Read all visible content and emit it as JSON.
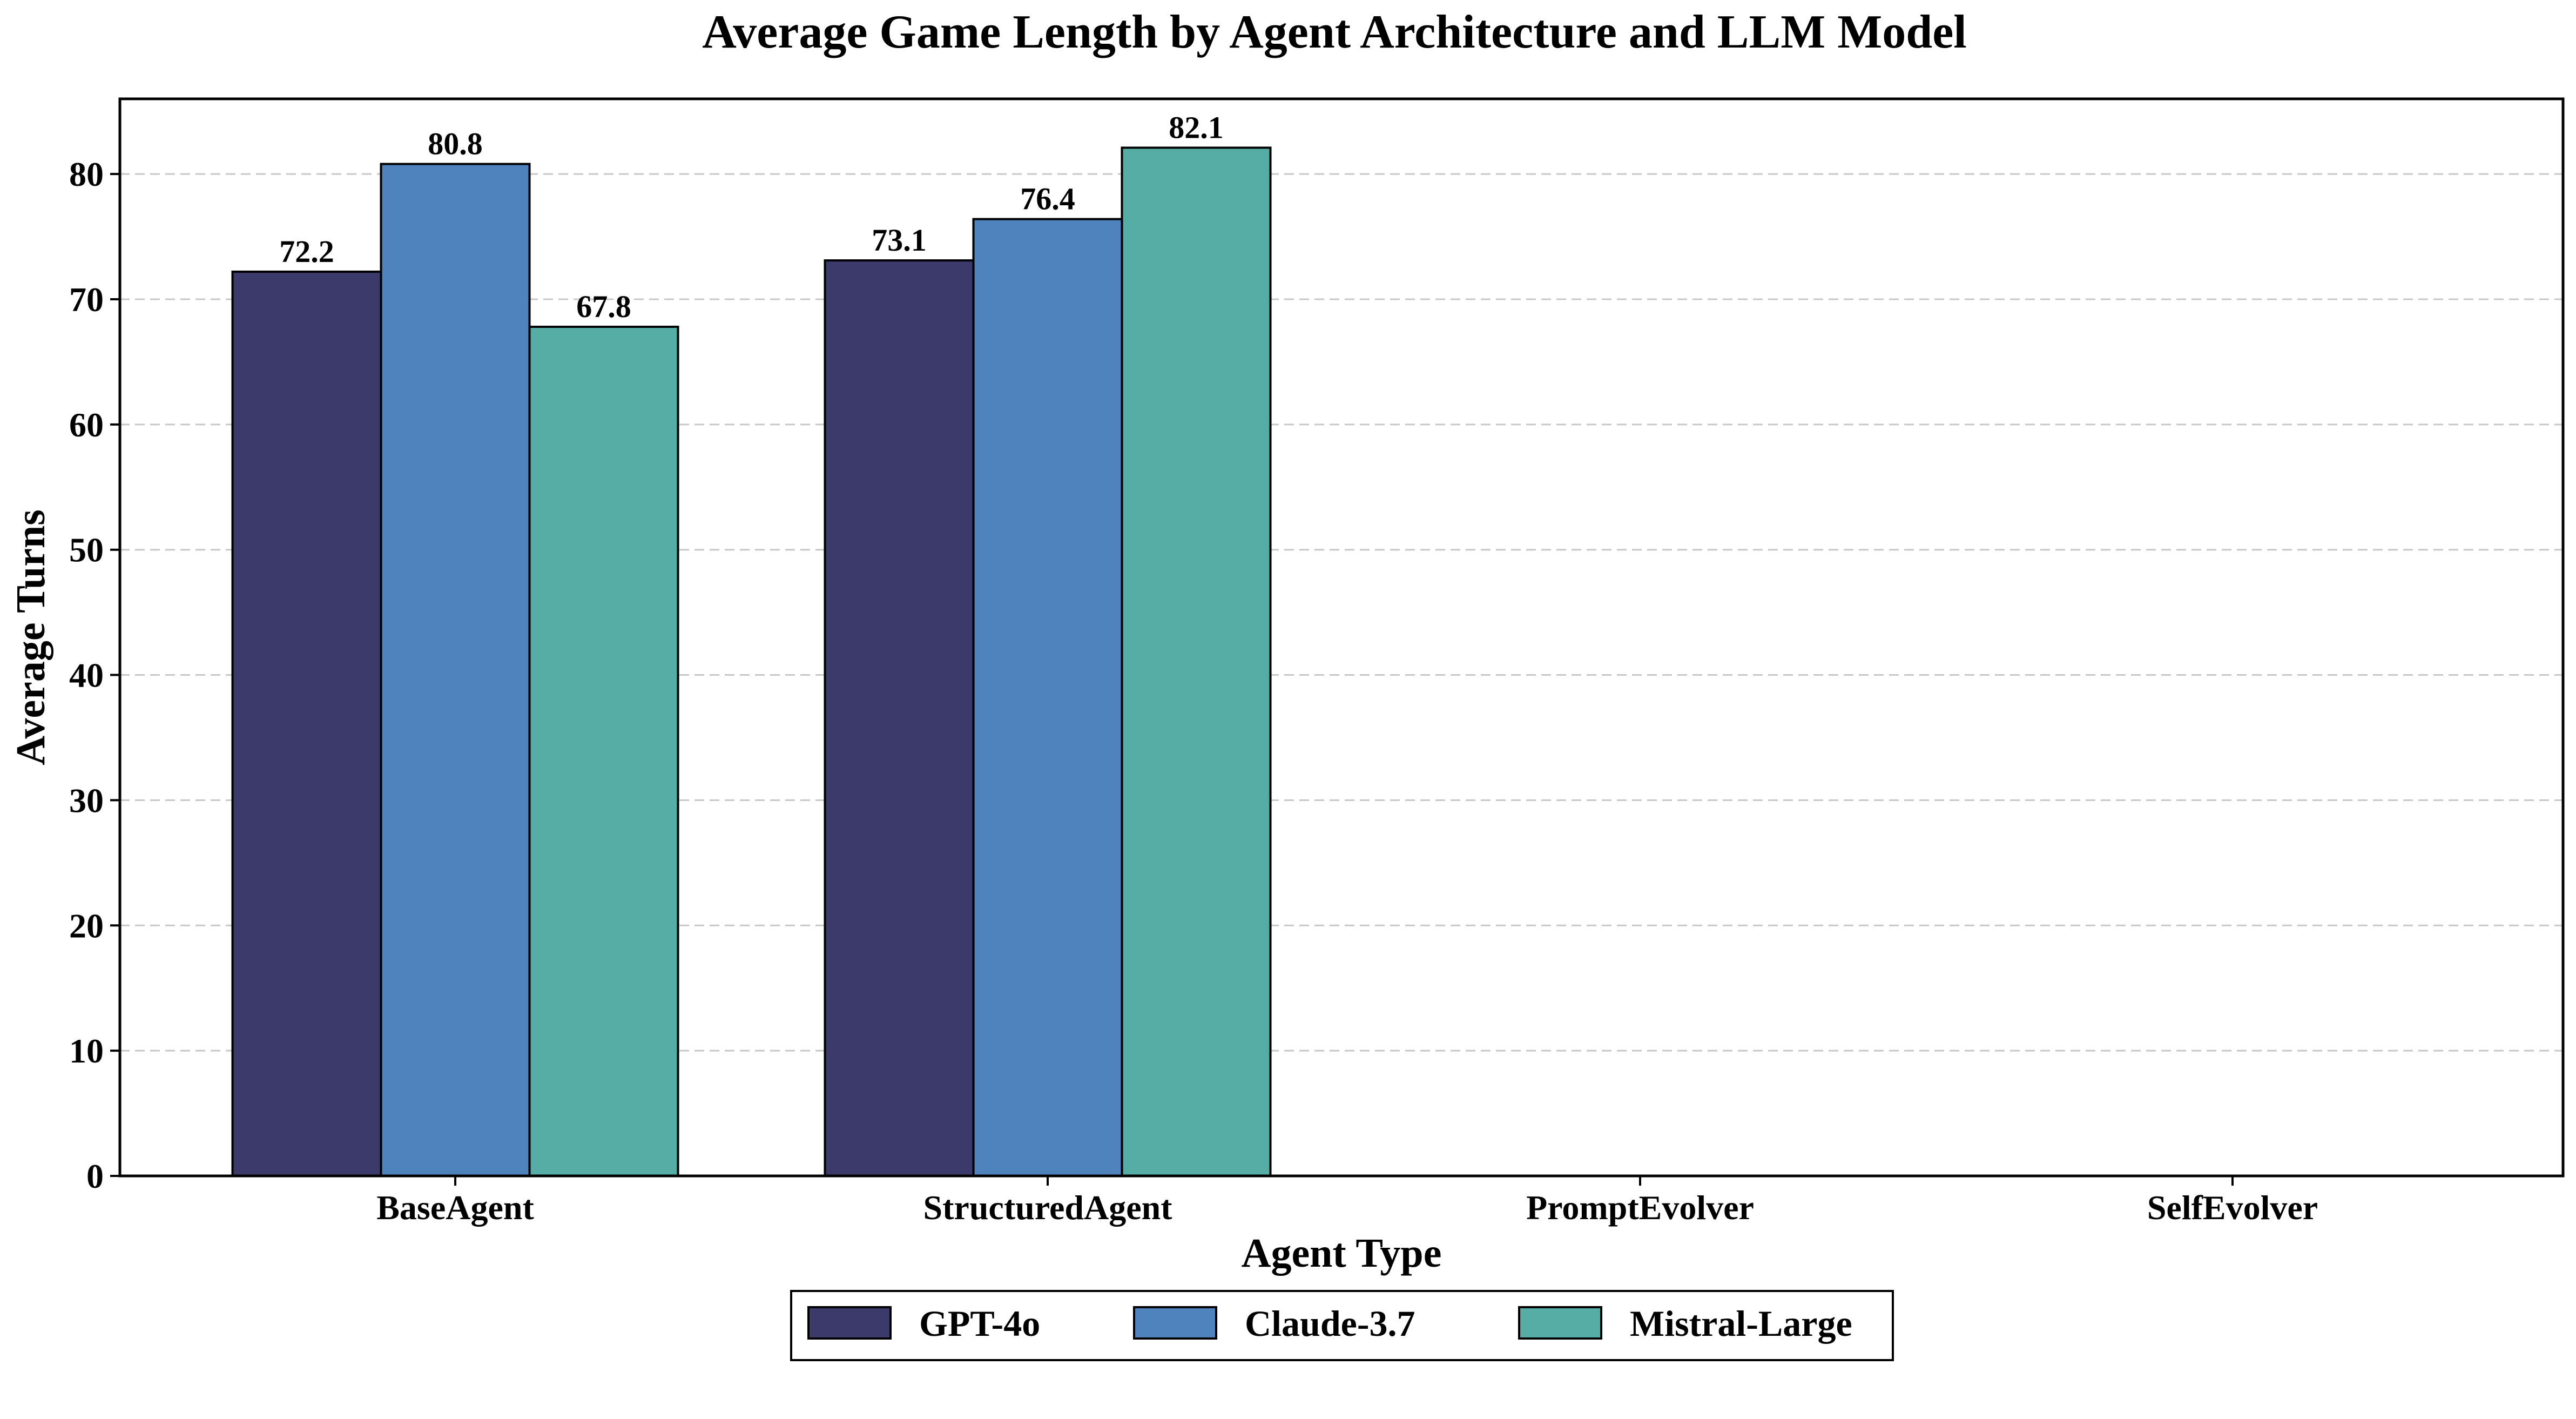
{
  "chart_data": {
    "type": "bar",
    "title": "Average Game Length by Agent Architecture and LLM Model",
    "xlabel": "Agent Type",
    "ylabel": "Average Turns",
    "categories": [
      "BaseAgent",
      "StructuredAgent",
      "PromptEvolver",
      "SelfEvolver"
    ],
    "series": [
      {
        "name": "GPT-4o",
        "color": "#3c3a6b",
        "values": [
          72.2,
          73.1,
          null,
          null
        ]
      },
      {
        "name": "Claude-3.7",
        "color": "#4e83bd",
        "values": [
          80.8,
          76.4,
          null,
          null
        ]
      },
      {
        "name": "Mistral-Large",
        "color": "#55ada5",
        "values": [
          67.8,
          82.1,
          null,
          null
        ]
      }
    ],
    "ylim": [
      0,
      86
    ],
    "yticks": [
      0,
      10,
      20,
      30,
      40,
      50,
      60,
      70,
      80
    ],
    "grid": "y-dashed",
    "legend_position": "bottom-center"
  }
}
